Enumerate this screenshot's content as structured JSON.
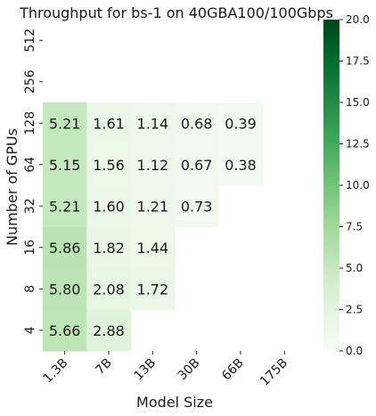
{
  "chart_data": {
    "type": "heatmap",
    "title": "Throughput  for bs-1 on 40GBA100/100Gbps",
    "xlabel": "Model Size",
    "ylabel": "Number of GPUs",
    "x_categories": [
      "1.3B",
      "7B",
      "13B",
      "30B",
      "66B",
      "175B"
    ],
    "y_categories": [
      "512",
      "256",
      "128",
      "64",
      "32",
      "16",
      "8",
      "4"
    ],
    "values": [
      [
        null,
        null,
        null,
        null,
        null,
        null
      ],
      [
        null,
        null,
        null,
        null,
        null,
        null
      ],
      [
        5.21,
        1.61,
        1.14,
        0.68,
        0.39,
        null
      ],
      [
        5.15,
        1.56,
        1.12,
        0.67,
        0.38,
        null
      ],
      [
        5.21,
        1.6,
        1.21,
        0.73,
        null,
        null
      ],
      [
        5.86,
        1.82,
        1.44,
        null,
        null,
        null
      ],
      [
        5.8,
        2.08,
        1.72,
        null,
        null,
        null
      ],
      [
        5.66,
        2.88,
        null,
        null,
        null,
        null
      ]
    ],
    "color_range": [
      0.0,
      20.0
    ],
    "colorbar_ticks": [
      "0.0",
      "2.5",
      "5.0",
      "7.5",
      "10.0",
      "12.5",
      "15.0",
      "17.5",
      "20.0"
    ],
    "colormap": "Greens",
    "colormap_stops": [
      "#f7fcf5",
      "#e5f5e0",
      "#c7e9c0",
      "#a1d99b",
      "#74c476",
      "#41ab5d",
      "#238b45",
      "#006d2c",
      "#00441b"
    ]
  }
}
